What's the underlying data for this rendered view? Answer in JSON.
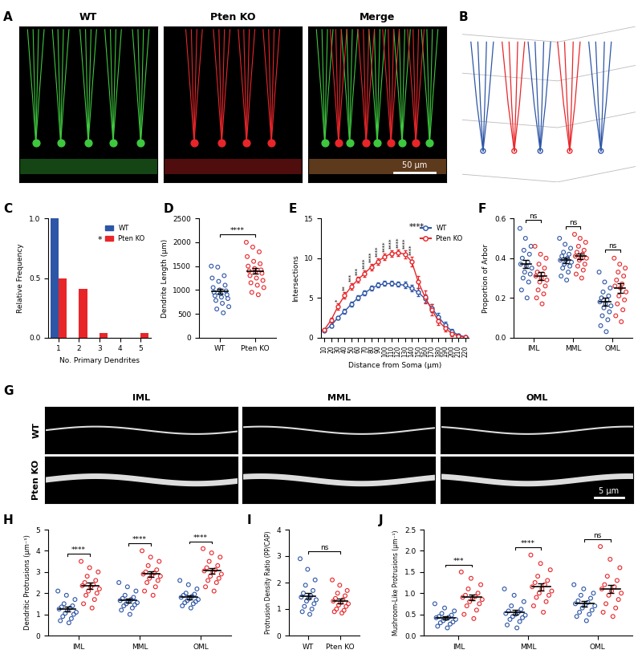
{
  "chart_data": [
    {
      "label": "A",
      "type": "image",
      "titles": [
        "WT",
        "Pten KO",
        "Merge"
      ],
      "colors": [
        "#3ec83e",
        "#e8262a"
      ],
      "scale_bar": "50 µm"
    },
    {
      "label": "B",
      "type": "image",
      "colors": [
        "#2e56a6",
        "#e8262a"
      ]
    },
    {
      "label": "C",
      "type": "bar",
      "categories": [
        "1",
        "2",
        "3",
        "4",
        "5"
      ],
      "series": [
        {
          "name": "WT",
          "color": "#2e56a6",
          "values": [
            1.0,
            0,
            0,
            0,
            0
          ]
        },
        {
          "name": "Pten KO",
          "color": "#e8262a",
          "values": [
            0.5,
            0.41,
            0.04,
            0,
            0.04
          ]
        }
      ],
      "x_label": "No. Primary Dendrites",
      "y_label": "Relative Frequency",
      "ylim": [
        0,
        1.0
      ],
      "yticks": [
        0.0,
        0.5,
        1.0
      ],
      "legend": "upper right",
      "significance": "*"
    },
    {
      "label": "D",
      "type": "scatter",
      "categories": [
        "WT",
        "Pten KO"
      ],
      "colors": [
        "#2e56a6",
        "#e8262a"
      ],
      "values": [
        [
          1500,
          1480,
          1300,
          1250,
          1180,
          1100,
          1050,
          1000,
          980,
          950,
          920,
          900,
          880,
          850,
          820,
          780,
          720,
          650,
          600,
          520
        ],
        [
          2000,
          1900,
          1800,
          1700,
          1600,
          1550,
          1500,
          1450,
          1420,
          1400,
          1380,
          1350,
          1300,
          1250,
          1200,
          1150,
          1100,
          1050,
          950,
          900
        ]
      ],
      "mean": [
        970,
        1400
      ],
      "sem": [
        55,
        65
      ],
      "y_label": "Dendrite Length (µm)",
      "ylim": [
        0,
        2500
      ],
      "yticks": [
        0,
        500,
        1000,
        1500,
        2000,
        2500
      ],
      "significance": "****"
    },
    {
      "label": "E",
      "type": "line",
      "x": [
        10,
        20,
        30,
        40,
        50,
        60,
        70,
        80,
        90,
        100,
        110,
        120,
        130,
        140,
        150,
        160,
        170,
        180,
        190,
        200,
        210,
        220
      ],
      "series": [
        {
          "name": "WT",
          "color": "#2e56a6",
          "marker": "o",
          "values": [
            0.9,
            1.5,
            2.5,
            3.3,
            4.2,
            5.0,
            5.6,
            6.2,
            6.6,
            6.8,
            6.8,
            6.7,
            6.6,
            6.2,
            5.7,
            4.9,
            3.7,
            2.6,
            1.6,
            0.8,
            0.3,
            0.1
          ],
          "errors": [
            0.1,
            0.2,
            0.2,
            0.3,
            0.3,
            0.3,
            0.3,
            0.3,
            0.3,
            0.3,
            0.3,
            0.3,
            0.4,
            0.4,
            0.5,
            0.5,
            0.5,
            0.5,
            0.4,
            0.3,
            0.2,
            0.1
          ]
        },
        {
          "name": "Pten KO",
          "color": "#e8262a",
          "marker": "o",
          "values": [
            1.0,
            2.2,
            3.9,
            5.3,
            6.4,
            7.3,
            8.1,
            8.9,
            9.6,
            10.2,
            10.6,
            10.7,
            10.5,
            9.6,
            7.0,
            5.1,
            3.5,
            2.1,
            1.2,
            0.5,
            0.2,
            0.05
          ],
          "errors": [
            0.1,
            0.3,
            0.4,
            0.4,
            0.4,
            0.4,
            0.4,
            0.4,
            0.4,
            0.4,
            0.4,
            0.4,
            0.5,
            0.6,
            0.8,
            0.8,
            0.7,
            0.5,
            0.4,
            0.3,
            0.2,
            0.05
          ]
        }
      ],
      "point_significance": [
        null,
        null,
        "*",
        "**",
        "***",
        "***",
        "****",
        "****",
        "****",
        "****",
        "****",
        "****",
        "****",
        "****",
        null,
        null,
        null,
        null,
        null,
        null,
        null,
        null
      ],
      "x_label": "Distance from Soma (µm)",
      "y_label": "Intersections",
      "xlim": [
        5,
        225
      ],
      "xticks": [
        10,
        20,
        30,
        40,
        50,
        60,
        70,
        80,
        90,
        100,
        110,
        120,
        130,
        140,
        150,
        160,
        170,
        180,
        190,
        200,
        210,
        220
      ],
      "ylim": [
        0,
        15
      ],
      "yticks": [
        0,
        5,
        10,
        15
      ],
      "legend": "upper right",
      "significance": "****"
    },
    {
      "label": "F",
      "type": "scatter",
      "categories": [
        "IML",
        "MML",
        "OML"
      ],
      "series": [
        {
          "color": "#2e56a6",
          "mean": [
            0.37,
            0.39,
            0.18
          ],
          "sem": [
            0.02,
            0.015,
            0.02
          ],
          "values": [
            [
              0.55,
              0.5,
              0.46,
              0.44,
              0.42,
              0.4,
              0.38,
              0.37,
              0.36,
              0.35,
              0.33,
              0.32,
              0.3,
              0.28,
              0.24,
              0.2
            ],
            [
              0.5,
              0.47,
              0.45,
              0.43,
              0.42,
              0.41,
              0.4,
              0.39,
              0.39,
              0.38,
              0.37,
              0.36,
              0.35,
              0.33,
              0.31,
              0.29
            ],
            [
              0.33,
              0.28,
              0.25,
              0.23,
              0.21,
              0.2,
              0.19,
              0.18,
              0.17,
              0.16,
              0.15,
              0.13,
              0.11,
              0.09,
              0.06,
              0.03
            ]
          ]
        },
        {
          "color": "#e8262a",
          "mean": [
            0.31,
            0.41,
            0.25
          ],
          "sem": [
            0.02,
            0.015,
            0.025
          ],
          "values": [
            [
              0.46,
              0.42,
              0.4,
              0.37,
              0.35,
              0.33,
              0.32,
              0.31,
              0.3,
              0.29,
              0.28,
              0.26,
              0.24,
              0.22,
              0.2,
              0.17
            ],
            [
              0.52,
              0.5,
              0.48,
              0.46,
              0.44,
              0.43,
              0.42,
              0.41,
              0.4,
              0.4,
              0.39,
              0.37,
              0.36,
              0.34,
              0.32,
              0.3
            ],
            [
              0.4,
              0.37,
              0.35,
              0.33,
              0.31,
              0.29,
              0.27,
              0.26,
              0.25,
              0.23,
              0.21,
              0.19,
              0.17,
              0.14,
              0.11,
              0.08
            ]
          ]
        }
      ],
      "significance": [
        "ns",
        "ns",
        "ns"
      ],
      "y_label": "Proportion of Arbor",
      "ylim": [
        0,
        0.6
      ],
      "yticks": [
        0.0,
        0.2,
        0.4,
        0.6
      ]
    },
    {
      "label": "G",
      "type": "image",
      "titles": [
        "IML",
        "MML",
        "OML"
      ],
      "row_labels": [
        "WT",
        "Pten KO"
      ],
      "scale_bar": "5 µm"
    },
    {
      "label": "H",
      "type": "scatter",
      "categories": [
        "IML",
        "MML",
        "OML"
      ],
      "series": [
        {
          "color": "#2e56a6",
          "mean": [
            1.25,
            1.65,
            1.8
          ],
          "sem": [
            0.1,
            0.08,
            0.08
          ],
          "values": [
            [
              2.1,
              1.9,
              1.7,
              1.5,
              1.4,
              1.35,
              1.3,
              1.25,
              1.2,
              1.1,
              1.05,
              1.0,
              0.9,
              0.8,
              0.7,
              0.6
            ],
            [
              2.5,
              2.3,
              2.1,
              1.9,
              1.8,
              1.75,
              1.7,
              1.65,
              1.6,
              1.55,
              1.5,
              1.45,
              1.4,
              1.3,
              1.2,
              1.0
            ],
            [
              2.6,
              2.4,
              2.2,
              2.0,
              1.95,
              1.9,
              1.85,
              1.8,
              1.75,
              1.7,
              1.65,
              1.6,
              1.55,
              1.5,
              1.4,
              1.3
            ]
          ]
        },
        {
          "color": "#e8262a",
          "mean": [
            2.35,
            2.9,
            3.05
          ],
          "sem": [
            0.14,
            0.13,
            0.13
          ],
          "values": [
            [
              3.5,
              3.2,
              3.0,
              2.8,
              2.6,
              2.5,
              2.4,
              2.35,
              2.3,
              2.2,
              2.1,
              2.0,
              1.9,
              1.7,
              1.5,
              1.3
            ],
            [
              4.0,
              3.7,
              3.5,
              3.3,
              3.1,
              3.0,
              2.95,
              2.9,
              2.85,
              2.8,
              2.7,
              2.6,
              2.5,
              2.3,
              2.1,
              1.9
            ],
            [
              4.1,
              3.9,
              3.7,
              3.5,
              3.3,
              3.2,
              3.1,
              3.05,
              3.0,
              2.9,
              2.8,
              2.7,
              2.6,
              2.5,
              2.3,
              2.1
            ]
          ]
        }
      ],
      "significance": [
        "****",
        "****",
        "****"
      ],
      "y_label": "Dendritic Protrusions (µm⁻¹)",
      "ylim": [
        0,
        5
      ],
      "yticks": [
        0,
        1,
        2,
        3,
        4,
        5
      ]
    },
    {
      "label": "I",
      "type": "scatter",
      "categories": [
        "WT",
        "Pten KO"
      ],
      "colors": [
        "#2e56a6",
        "#e8262a"
      ],
      "values": [
        [
          2.9,
          2.5,
          2.1,
          1.9,
          1.7,
          1.6,
          1.5,
          1.45,
          1.4,
          1.35,
          1.3,
          1.2,
          1.1,
          1.0,
          0.9,
          0.8
        ],
        [
          2.1,
          1.9,
          1.7,
          1.6,
          1.5,
          1.4,
          1.35,
          1.3,
          1.25,
          1.2,
          1.15,
          1.1,
          1.0,
          0.95,
          0.9,
          0.85
        ]
      ],
      "mean": [
        1.5,
        1.3
      ],
      "sem": [
        0.12,
        0.08
      ],
      "y_label": "Protrusion Density Ratio (PP/CAP)",
      "ylim": [
        0,
        4
      ],
      "yticks": [
        0,
        1,
        2,
        3,
        4
      ],
      "significance": "ns"
    },
    {
      "label": "J",
      "type": "scatter",
      "categories": [
        "IML",
        "MML",
        "OML"
      ],
      "series": [
        {
          "color": "#2e56a6",
          "mean": [
            0.42,
            0.55,
            0.75
          ],
          "sem": [
            0.04,
            0.06,
            0.06
          ],
          "values": [
            [
              0.75,
              0.65,
              0.58,
              0.52,
              0.48,
              0.45,
              0.43,
              0.42,
              0.4,
              0.38,
              0.35,
              0.32,
              0.3,
              0.27,
              0.22,
              0.18
            ],
            [
              1.1,
              0.95,
              0.8,
              0.7,
              0.62,
              0.58,
              0.55,
              0.52,
              0.5,
              0.48,
              0.45,
              0.42,
              0.38,
              0.33,
              0.25,
              0.18
            ],
            [
              1.2,
              1.1,
              1.0,
              0.95,
              0.88,
              0.82,
              0.78,
              0.75,
              0.72,
              0.7,
              0.65,
              0.6,
              0.55,
              0.5,
              0.45,
              0.35
            ]
          ]
        },
        {
          "color": "#e8262a",
          "mean": [
            0.9,
            1.15,
            1.1
          ],
          "sem": [
            0.07,
            0.08,
            0.09
          ],
          "values": [
            [
              1.5,
              1.35,
              1.2,
              1.1,
              1.0,
              0.95,
              0.92,
              0.9,
              0.88,
              0.85,
              0.8,
              0.75,
              0.7,
              0.6,
              0.5,
              0.4
            ],
            [
              1.9,
              1.7,
              1.55,
              1.4,
              1.3,
              1.25,
              1.2,
              1.15,
              1.1,
              1.05,
              1.0,
              0.95,
              0.9,
              0.8,
              0.7,
              0.55
            ],
            [
              2.1,
              1.8,
              1.6,
              1.4,
              1.3,
              1.2,
              1.15,
              1.1,
              1.05,
              1.0,
              0.95,
              0.85,
              0.75,
              0.65,
              0.55,
              0.45
            ]
          ]
        }
      ],
      "significance": [
        "***",
        "****",
        "ns"
      ],
      "y_label": "Mushroom-Like Protrusions (µm⁻¹)",
      "ylim": [
        0,
        2.5
      ],
      "yticks": [
        0.0,
        0.5,
        1.0,
        1.5,
        2.0,
        2.5
      ]
    }
  ]
}
